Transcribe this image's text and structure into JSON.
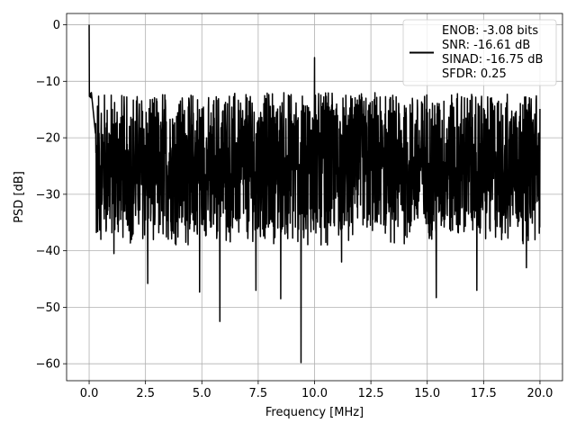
{
  "chart_data": {
    "type": "line",
    "title": "",
    "xlabel": "Frequency [MHz]",
    "ylabel": "PSD [dB]",
    "xlim": [
      -1.0,
      21.0
    ],
    "ylim": [
      -63,
      2
    ],
    "xticks": [
      0.0,
      2.5,
      5.0,
      7.5,
      10.0,
      12.5,
      15.0,
      17.5,
      20.0
    ],
    "xtick_labels": [
      "0.0",
      "2.5",
      "5.0",
      "7.5",
      "10.0",
      "12.5",
      "15.0",
      "17.5",
      "20.0"
    ],
    "yticks": [
      0,
      -10,
      -20,
      -30,
      -40,
      -50,
      -60
    ],
    "ytick_labels": [
      "0",
      "−10",
      "−20",
      "−30",
      "−40",
      "−50",
      "−60"
    ],
    "grid": true,
    "legend_position": "top-right",
    "line_color": "#000000",
    "legend": [
      "ENOB: -3.08 bits",
      "SNR: -16.61 dB",
      "SINAD: -16.75 dB",
      "SFDR: 0.25"
    ],
    "series_summary": {
      "x_range": [
        0.0,
        20.0
      ],
      "noise_floor_mean": -25,
      "noise_floor_top": -13,
      "noise_floor_bottom": -38
    },
    "peaks": [
      {
        "x": 0.0,
        "y": 0.0
      },
      {
        "x": 10.0,
        "y": -5.8
      }
    ],
    "notable_dips": [
      {
        "x": 1.1,
        "y": -40.5
      },
      {
        "x": 2.6,
        "y": -45.8
      },
      {
        "x": 4.9,
        "y": -47.3
      },
      {
        "x": 5.8,
        "y": -52.5
      },
      {
        "x": 7.4,
        "y": -47.0
      },
      {
        "x": 8.5,
        "y": -48.5
      },
      {
        "x": 9.4,
        "y": -59.8
      },
      {
        "x": 11.2,
        "y": -42.0
      },
      {
        "x": 15.4,
        "y": -48.3
      },
      {
        "x": 17.2,
        "y": -47.0
      },
      {
        "x": 19.4,
        "y": -43.0
      }
    ]
  }
}
